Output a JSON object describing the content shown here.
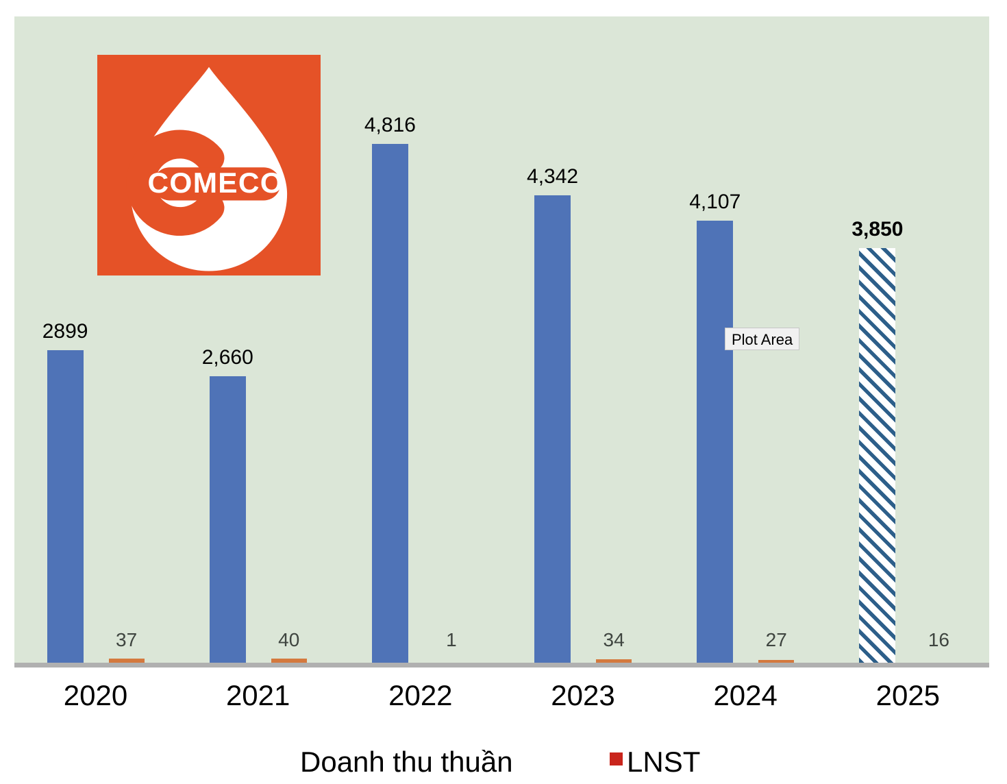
{
  "chart_data": {
    "type": "bar",
    "title": "",
    "categories": [
      "2020",
      "2021",
      "2022",
      "2023",
      "2024",
      "2025"
    ],
    "series": [
      {
        "name": "Doanh thu thuần",
        "color": "#4F73B7",
        "values": [
          2899,
          2660,
          4816,
          4342,
          4107,
          3850
        ],
        "data_labels": [
          "2899",
          "2,660",
          "4,816",
          "4,342",
          "4,107",
          "3,850"
        ],
        "label_bold": [
          false,
          false,
          false,
          false,
          false,
          true
        ],
        "hatched": [
          false,
          false,
          false,
          false,
          false,
          true
        ]
      },
      {
        "name": "LNST",
        "color": "#D4793E",
        "values": [
          37,
          40,
          1,
          34,
          27,
          16
        ],
        "data_labels": [
          "37",
          "40",
          "1",
          "34",
          "27",
          "16"
        ],
        "bar_visible": [
          true,
          true,
          false,
          true,
          true,
          false
        ]
      }
    ],
    "ylim": [
      0,
      6000
    ],
    "xlabel": "",
    "ylabel": "",
    "grid": false,
    "legend_position": "bottom",
    "plot_bg_color": "#DBE6D7",
    "hatch_color": "#2D5F8A",
    "axis_line_color": "#B0B0B0",
    "lnst_label_color": "#3F4540"
  },
  "logo": {
    "text": "COMECO",
    "bg_color": "#E55227"
  },
  "tooltip": {
    "label": "Plot Area"
  },
  "legend": {
    "revenue_label": "Doanh thu thuần",
    "lnst_label": "LNST",
    "lnst_marker_color": "#C9251C"
  }
}
